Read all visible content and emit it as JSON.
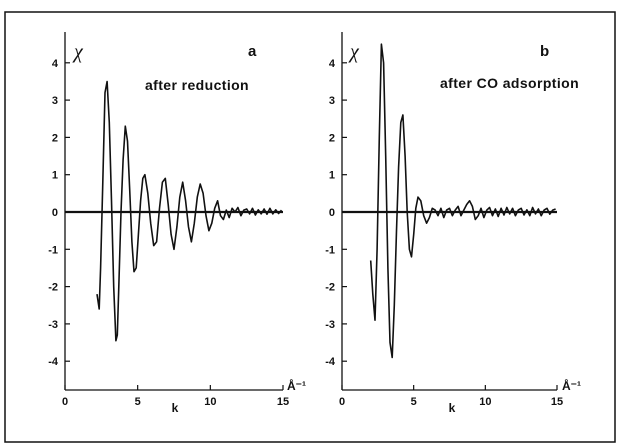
{
  "chart_data": [
    {
      "type": "line",
      "panel_label": "a",
      "annotation": "after reduction",
      "ylabel": "χ",
      "xlabel": "k",
      "x_unit": "Å⁻¹",
      "xlim": [
        0,
        15
      ],
      "ylim": [
        -4.8,
        4.8
      ],
      "xticks": [
        0,
        5,
        10,
        15
      ],
      "yticks": [
        4,
        3,
        2,
        1,
        0,
        -1,
        -2,
        -3,
        -4
      ],
      "zero_line": true,
      "grid": false,
      "series": [
        {
          "color": "#111111",
          "x": [
            2.2,
            2.35,
            2.45,
            2.6,
            2.75,
            2.9,
            3.05,
            3.2,
            3.35,
            3.5,
            3.6,
            3.7,
            3.85,
            4.0,
            4.15,
            4.3,
            4.45,
            4.6,
            4.75,
            4.9,
            5.05,
            5.2,
            5.35,
            5.5,
            5.7,
            5.9,
            6.1,
            6.3,
            6.5,
            6.7,
            6.9,
            7.1,
            7.3,
            7.5,
            7.7,
            7.9,
            8.1,
            8.3,
            8.5,
            8.7,
            8.9,
            9.1,
            9.3,
            9.5,
            9.7,
            9.9,
            10.1,
            10.3,
            10.5,
            10.7,
            10.9,
            11.1,
            11.3,
            11.5,
            11.7,
            11.9,
            12.1,
            12.3,
            12.5,
            12.7,
            12.9,
            13.1,
            13.3,
            13.5,
            13.7,
            13.9,
            14.1,
            14.3,
            14.5,
            14.7,
            14.9
          ],
          "y": [
            -2.2,
            -2.6,
            -1.5,
            0.8,
            3.2,
            3.5,
            2.4,
            0.3,
            -2.0,
            -3.45,
            -3.3,
            -2.0,
            0.0,
            1.4,
            2.3,
            1.9,
            0.6,
            -0.8,
            -1.6,
            -1.5,
            -0.6,
            0.3,
            0.9,
            1.0,
            0.5,
            -0.3,
            -0.9,
            -0.8,
            0.1,
            0.8,
            0.9,
            0.2,
            -0.6,
            -1.0,
            -0.4,
            0.4,
            0.8,
            0.3,
            -0.4,
            -0.8,
            -0.3,
            0.4,
            0.75,
            0.5,
            -0.1,
            -0.5,
            -0.3,
            0.1,
            0.3,
            -0.1,
            -0.2,
            0.05,
            -0.15,
            0.1,
            0.0,
            0.12,
            -0.1,
            0.05,
            0.08,
            -0.05,
            0.1,
            -0.08,
            0.06,
            -0.05,
            0.08,
            -0.06,
            0.1,
            -0.05,
            0.06,
            -0.04,
            0.05
          ]
        }
      ]
    },
    {
      "type": "line",
      "panel_label": "b",
      "annotation": "after CO adsorption",
      "ylabel": "χ",
      "xlabel": "k",
      "x_unit": "Å⁻¹",
      "xlim": [
        0,
        15
      ],
      "ylim": [
        -4.8,
        4.8
      ],
      "xticks": [
        0,
        5,
        10,
        15
      ],
      "yticks": [
        4,
        3,
        2,
        1,
        0,
        -1,
        -2,
        -3,
        -4
      ],
      "zero_line": true,
      "grid": false,
      "series": [
        {
          "color": "#111111",
          "x": [
            2.0,
            2.15,
            2.3,
            2.45,
            2.6,
            2.75,
            2.9,
            3.05,
            3.2,
            3.35,
            3.5,
            3.65,
            3.8,
            3.95,
            4.1,
            4.25,
            4.4,
            4.55,
            4.7,
            4.85,
            5.0,
            5.15,
            5.3,
            5.5,
            5.7,
            5.9,
            6.1,
            6.3,
            6.5,
            6.7,
            6.9,
            7.1,
            7.3,
            7.5,
            7.7,
            7.9,
            8.1,
            8.3,
            8.5,
            8.7,
            8.9,
            9.1,
            9.3,
            9.5,
            9.7,
            9.9,
            10.1,
            10.3,
            10.5,
            10.7,
            10.9,
            11.1,
            11.3,
            11.5,
            11.7,
            11.9,
            12.1,
            12.3,
            12.5,
            12.7,
            12.9,
            13.1,
            13.3,
            13.5,
            13.7,
            13.9,
            14.1,
            14.3,
            14.5,
            14.7,
            14.9
          ],
          "y": [
            -1.3,
            -2.2,
            -2.9,
            -1.0,
            2.0,
            4.5,
            4.0,
            1.5,
            -1.5,
            -3.5,
            -3.9,
            -2.5,
            -0.5,
            1.2,
            2.4,
            2.6,
            1.5,
            0.0,
            -1.0,
            -1.2,
            -0.6,
            0.1,
            0.4,
            0.3,
            -0.1,
            -0.3,
            -0.15,
            0.1,
            0.05,
            -0.1,
            0.1,
            -0.15,
            0.05,
            0.1,
            -0.1,
            0.05,
            0.15,
            -0.1,
            0.05,
            0.2,
            0.3,
            0.15,
            -0.2,
            -0.1,
            0.1,
            -0.15,
            0.05,
            0.12,
            -0.1,
            0.08,
            -0.12,
            0.1,
            -0.08,
            0.12,
            -0.05,
            0.1,
            -0.1,
            0.05,
            0.1,
            -0.08,
            0.06,
            -0.1,
            0.12,
            -0.05,
            0.08,
            -0.1,
            0.05,
            0.1,
            -0.06,
            0.05,
            0.08
          ]
        }
      ]
    }
  ]
}
